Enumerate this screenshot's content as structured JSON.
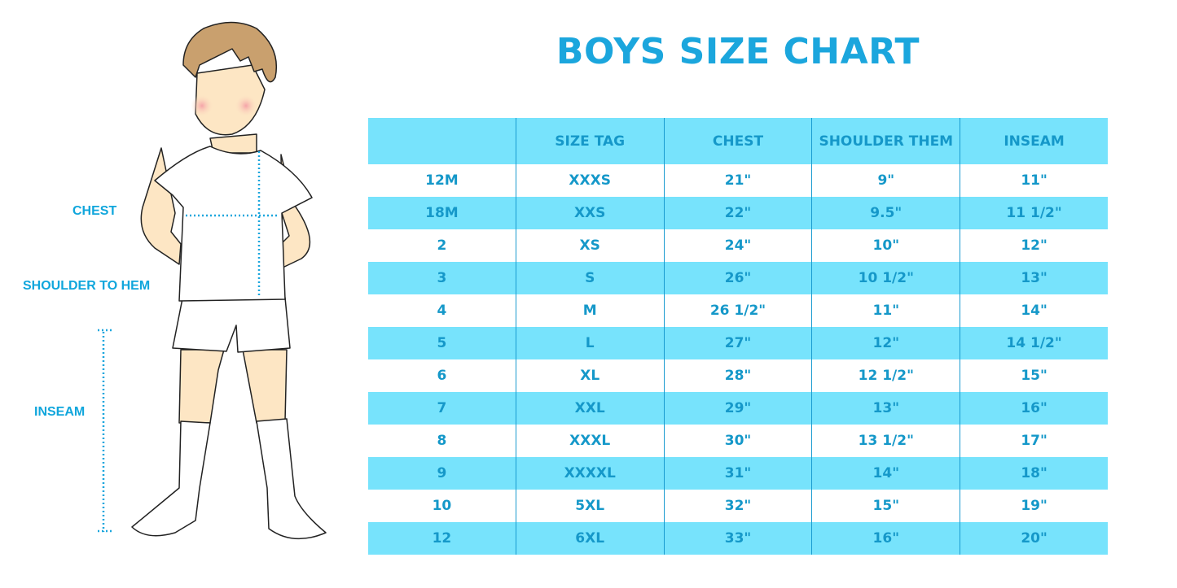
{
  "title": "BOYS SIZE CHART",
  "figure_labels": {
    "chest": "CHEST",
    "shoulder_to_hem": "SHOULDER TO HEM",
    "inseam": "INSEAM"
  },
  "colors": {
    "accent": "#1ba6dd",
    "row_fill": "#77e3fc",
    "text": "#1598c9"
  },
  "table": {
    "headers": [
      "",
      "SIZE TAG",
      "CHEST",
      "SHOULDER THEM",
      "INSEAM"
    ],
    "rows": [
      [
        "12M",
        "XXXS",
        "21\"",
        "9\"",
        "11\""
      ],
      [
        "18M",
        "XXS",
        "22\"",
        "9.5\"",
        "11 1/2\""
      ],
      [
        "2",
        "XS",
        "24\"",
        "10\"",
        "12\""
      ],
      [
        "3",
        "S",
        "26\"",
        "10 1/2\"",
        "13\""
      ],
      [
        "4",
        "M",
        "26 1/2\"",
        "11\"",
        "14\""
      ],
      [
        "5",
        "L",
        "27\"",
        "12\"",
        "14 1/2\""
      ],
      [
        "6",
        "XL",
        "28\"",
        "12 1/2\"",
        "15\""
      ],
      [
        "7",
        "XXL",
        "29\"",
        "13\"",
        "16\""
      ],
      [
        "8",
        "XXXL",
        "30\"",
        "13 1/2\"",
        "17\""
      ],
      [
        "9",
        "XXXXL",
        "31\"",
        "14\"",
        "18\""
      ],
      [
        "10",
        "5XL",
        "32\"",
        "15\"",
        "19\""
      ],
      [
        "12",
        "6XL",
        "33\"",
        "16\"",
        "20\""
      ]
    ]
  }
}
